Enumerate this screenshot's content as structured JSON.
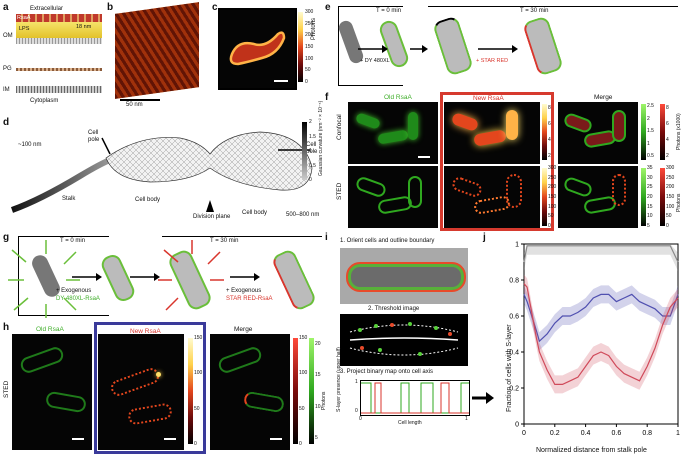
{
  "labels": {
    "a": "a",
    "b": "b",
    "c": "c",
    "d": "d",
    "e": "e",
    "f": "f",
    "g": "g",
    "h": "h",
    "i": "i",
    "j": "j"
  },
  "panel_a": {
    "extracellular": "Extracellular",
    "cytoplasm": "Cytoplasm",
    "rsaa": "RsaA",
    "lps": "LPS",
    "om": "OM",
    "pg": "PG",
    "im": "IM",
    "thickness": "18 nm"
  },
  "panel_b": {
    "scale": "50 nm"
  },
  "panel_c": {
    "cbar_title": "Photons",
    "ticks": [
      "300",
      "250",
      "200",
      "150",
      "100",
      "50",
      "0"
    ]
  },
  "panel_d": {
    "stalk_width": "~100 nm",
    "stalk": "Stalk",
    "cell_pole_left": "Cell pole",
    "cell_body_1": "Cell body",
    "division_plane": "Division plane",
    "cell_body_2": "Cell body",
    "cell_pole_right": "Cell pole",
    "cell_width": "500–800 nm",
    "cbar_title": "Gaussian curvature (nm⁻² × 10⁻⁵)",
    "ticks": [
      "2",
      "1.5",
      "1",
      "0.5",
      "0"
    ]
  },
  "panel_e": {
    "t0": "T = 0 min",
    "t30": "T = 30 min",
    "dye1": "+ DY 480XL",
    "dye2": "+ STAR RED"
  },
  "panel_f": {
    "old": "Old RsaA",
    "new": "New RsaA",
    "merge": "Merge",
    "confocal": "Confocal",
    "sted": "STED",
    "conf_new_ticks": [
      "8",
      "6",
      "4",
      "2"
    ],
    "conf_merge_g": [
      "2.5",
      "2",
      "1.5",
      "1",
      "0.5"
    ],
    "conf_merge_r": [
      "8",
      "6",
      "4",
      "2"
    ],
    "photons_x1000": "Photons (x1000)",
    "sted_new_ticks": [
      "300",
      "250",
      "200",
      "150",
      "100",
      "50",
      "0"
    ],
    "sted_merge_g": [
      "35",
      "30",
      "25",
      "20",
      "15",
      "10",
      "5"
    ],
    "sted_merge_r": [
      "300",
      "250",
      "200",
      "150",
      "100",
      "50",
      "0"
    ],
    "photons": "Photons"
  },
  "panel_g": {
    "t0": "T = 0 min",
    "t30": "T = 30 min",
    "ex1a": "+ Exogenous",
    "ex1b": "DY 480XL-RsaA",
    "ex2a": "+ Exogenous",
    "ex2b": "STAR RED-RsaA"
  },
  "panel_h": {
    "old": "Old RsaA",
    "new": "New RsaA",
    "merge": "Merge",
    "sted": "STED",
    "new_ticks": [
      "150",
      "100",
      "50",
      "0"
    ],
    "merge_r": [
      "150",
      "100",
      "50",
      "0"
    ],
    "merge_g": [
      "20",
      "15",
      "10",
      "5"
    ],
    "photons": "Photons"
  },
  "panel_i": {
    "step1": "1. Orient cells and outline boundary",
    "step2": "2. Threshold image",
    "step3": "3. Project binary map onto cell axis",
    "yaxis": "S-layer presence (upper half)",
    "xaxis": "Cell length",
    "x0": "0",
    "x1": "1",
    "y0": "0",
    "y1": "1"
  },
  "chart_data": {
    "type": "line",
    "xlabel": "Normalized distance from stalk pole",
    "ylabel": "Fraction of cells with S-layer",
    "xlim": [
      0,
      1
    ],
    "ylim": [
      0,
      1
    ],
    "xticks": [
      "0",
      "0.2",
      "0.4",
      "0.6",
      "0.8",
      "1"
    ],
    "yticks": [
      "0",
      "0.2",
      "0.4",
      "0.6",
      "0.8",
      "1"
    ],
    "x": [
      0,
      0.02,
      0.05,
      0.08,
      0.1,
      0.15,
      0.2,
      0.25,
      0.3,
      0.35,
      0.4,
      0.45,
      0.5,
      0.55,
      0.6,
      0.65,
      0.7,
      0.75,
      0.8,
      0.85,
      0.9,
      0.95,
      1
    ],
    "series": [
      {
        "color": "#888888",
        "values": [
          0.9,
          0.99,
          0.99,
          0.99,
          0.99,
          0.99,
          0.99,
          0.99,
          0.99,
          0.99,
          0.99,
          0.99,
          0.99,
          0.99,
          0.99,
          0.99,
          0.99,
          0.99,
          0.99,
          0.99,
          0.99,
          0.99,
          0.9
        ]
      },
      {
        "color": "#5050b0",
        "values": [
          0.72,
          0.68,
          0.6,
          0.52,
          0.46,
          0.5,
          0.56,
          0.6,
          0.6,
          0.62,
          0.65,
          0.7,
          0.72,
          0.72,
          0.68,
          0.7,
          0.72,
          0.68,
          0.66,
          0.64,
          0.6,
          0.6,
          0.72
        ]
      },
      {
        "color": "#d04a5a",
        "values": [
          0.78,
          0.76,
          0.62,
          0.48,
          0.4,
          0.3,
          0.22,
          0.22,
          0.24,
          0.26,
          0.32,
          0.38,
          0.4,
          0.38,
          0.32,
          0.28,
          0.26,
          0.24,
          0.32,
          0.42,
          0.55,
          0.65,
          0.7
        ]
      }
    ]
  }
}
